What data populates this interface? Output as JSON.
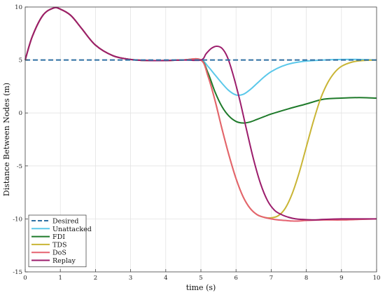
{
  "chart_data": {
    "type": "line",
    "xlabel": "time (s)",
    "ylabel": "Distance Between Nodes (m)",
    "xlim": [
      0,
      10
    ],
    "ylim": [
      -15,
      10
    ],
    "xticks": [
      "0",
      "1",
      "2",
      "3",
      "4",
      "5",
      "6",
      "7",
      "8",
      "9",
      "10"
    ],
    "yticks": [
      "10",
      "5",
      "0",
      "-5",
      "-10",
      "-15"
    ],
    "grid": true,
    "legend": "bottom-left",
    "series": [
      {
        "name": "Desired",
        "color": "#2e6fa3",
        "dashed": true,
        "x": [
          0,
          10
        ],
        "y": [
          5,
          5
        ]
      },
      {
        "name": "Unattacked",
        "color": "#5bc8ea",
        "x": [
          0,
          0.2,
          0.5,
          0.8,
          1.0,
          1.3,
          1.6,
          2.0,
          2.5,
          3.0,
          3.5,
          4.0,
          4.5,
          5.0,
          5.2,
          5.4,
          5.6,
          5.8,
          6.0,
          6.2,
          6.4,
          6.6,
          6.8,
          7.0,
          7.3,
          7.6,
          8.0,
          8.5,
          9.0,
          9.5,
          10.0
        ],
        "y": [
          5.0,
          7.2,
          9.2,
          9.9,
          9.8,
          9.2,
          8.0,
          6.4,
          5.4,
          5.05,
          4.95,
          4.95,
          5.0,
          5.0,
          4.4,
          3.6,
          2.8,
          2.1,
          1.7,
          1.75,
          2.2,
          2.8,
          3.4,
          3.9,
          4.4,
          4.7,
          4.9,
          5.0,
          5.05,
          5.05,
          5.0
        ]
      },
      {
        "name": "FDI",
        "color": "#1e7a2a",
        "x": [
          0,
          0.2,
          0.5,
          0.8,
          1.0,
          1.3,
          1.6,
          2.0,
          2.5,
          3.0,
          3.5,
          4.0,
          4.5,
          5.0,
          5.2,
          5.4,
          5.6,
          5.8,
          6.0,
          6.2,
          6.4,
          6.6,
          6.8,
          7.0,
          7.5,
          8.0,
          8.5,
          9.0,
          9.5,
          10.0
        ],
        "y": [
          5.0,
          7.2,
          9.2,
          9.9,
          9.8,
          9.2,
          8.0,
          6.4,
          5.4,
          5.05,
          4.95,
          4.95,
          5.0,
          5.0,
          3.8,
          2.0,
          0.6,
          -0.3,
          -0.8,
          -0.95,
          -0.85,
          -0.6,
          -0.35,
          -0.1,
          0.4,
          0.85,
          1.3,
          1.4,
          1.45,
          1.4
        ]
      },
      {
        "name": "TDS",
        "color": "#c9b535",
        "x": [
          0,
          0.2,
          0.5,
          0.8,
          1.0,
          1.3,
          1.6,
          2.0,
          2.5,
          3.0,
          3.5,
          4.0,
          4.5,
          5.0,
          5.2,
          5.4,
          5.6,
          5.8,
          6.0,
          6.2,
          6.4,
          6.6,
          6.8,
          7.0,
          7.2,
          7.4,
          7.6,
          7.8,
          8.0,
          8.2,
          8.4,
          8.6,
          8.8,
          9.0,
          9.3,
          9.6,
          10.0
        ],
        "y": [
          5.0,
          7.2,
          9.2,
          9.9,
          9.8,
          9.2,
          8.0,
          6.4,
          5.4,
          5.05,
          4.95,
          4.95,
          5.0,
          5.0,
          3.5,
          1.2,
          -1.5,
          -4.0,
          -6.2,
          -7.9,
          -9.0,
          -9.6,
          -9.85,
          -9.9,
          -9.7,
          -9.0,
          -7.6,
          -5.6,
          -3.2,
          -0.8,
          1.3,
          2.8,
          3.8,
          4.4,
          4.8,
          4.95,
          5.0
        ]
      },
      {
        "name": "DoS",
        "color": "#e56270",
        "x": [
          0,
          0.2,
          0.5,
          0.8,
          1.0,
          1.3,
          1.6,
          2.0,
          2.5,
          3.0,
          3.5,
          4.0,
          4.5,
          5.0,
          5.2,
          5.4,
          5.6,
          5.8,
          6.0,
          6.2,
          6.4,
          6.6,
          6.8,
          7.0,
          7.2,
          7.4,
          7.6,
          7.8,
          8.0,
          8.5,
          9.0,
          9.5,
          10.0
        ],
        "y": [
          5.0,
          7.2,
          9.2,
          9.9,
          9.8,
          9.2,
          8.0,
          6.4,
          5.4,
          5.05,
          4.95,
          4.95,
          5.0,
          5.0,
          3.5,
          1.2,
          -1.5,
          -4.0,
          -6.2,
          -7.9,
          -9.0,
          -9.6,
          -9.85,
          -10.0,
          -10.1,
          -10.15,
          -10.2,
          -10.2,
          -10.15,
          -10.1,
          -10.1,
          -10.05,
          -10.0
        ]
      },
      {
        "name": "Replay",
        "color": "#9c1d6c",
        "x": [
          0,
          0.2,
          0.5,
          0.8,
          1.0,
          1.3,
          1.6,
          2.0,
          2.5,
          3.0,
          3.5,
          4.0,
          4.5,
          5.0,
          5.15,
          5.3,
          5.45,
          5.6,
          5.75,
          5.9,
          6.1,
          6.3,
          6.5,
          6.7,
          6.9,
          7.1,
          7.3,
          7.5,
          7.7,
          7.9,
          8.2,
          8.5,
          9.0,
          9.5,
          10.0
        ],
        "y": [
          5.0,
          7.2,
          9.2,
          9.9,
          9.8,
          9.2,
          8.0,
          6.4,
          5.4,
          5.05,
          4.95,
          4.95,
          5.0,
          5.0,
          5.6,
          6.1,
          6.3,
          6.1,
          5.3,
          3.8,
          1.3,
          -1.6,
          -4.4,
          -6.7,
          -8.3,
          -9.2,
          -9.6,
          -9.85,
          -10.0,
          -10.05,
          -10.1,
          -10.05,
          -10.0,
          -10.0,
          -10.0
        ]
      }
    ]
  }
}
